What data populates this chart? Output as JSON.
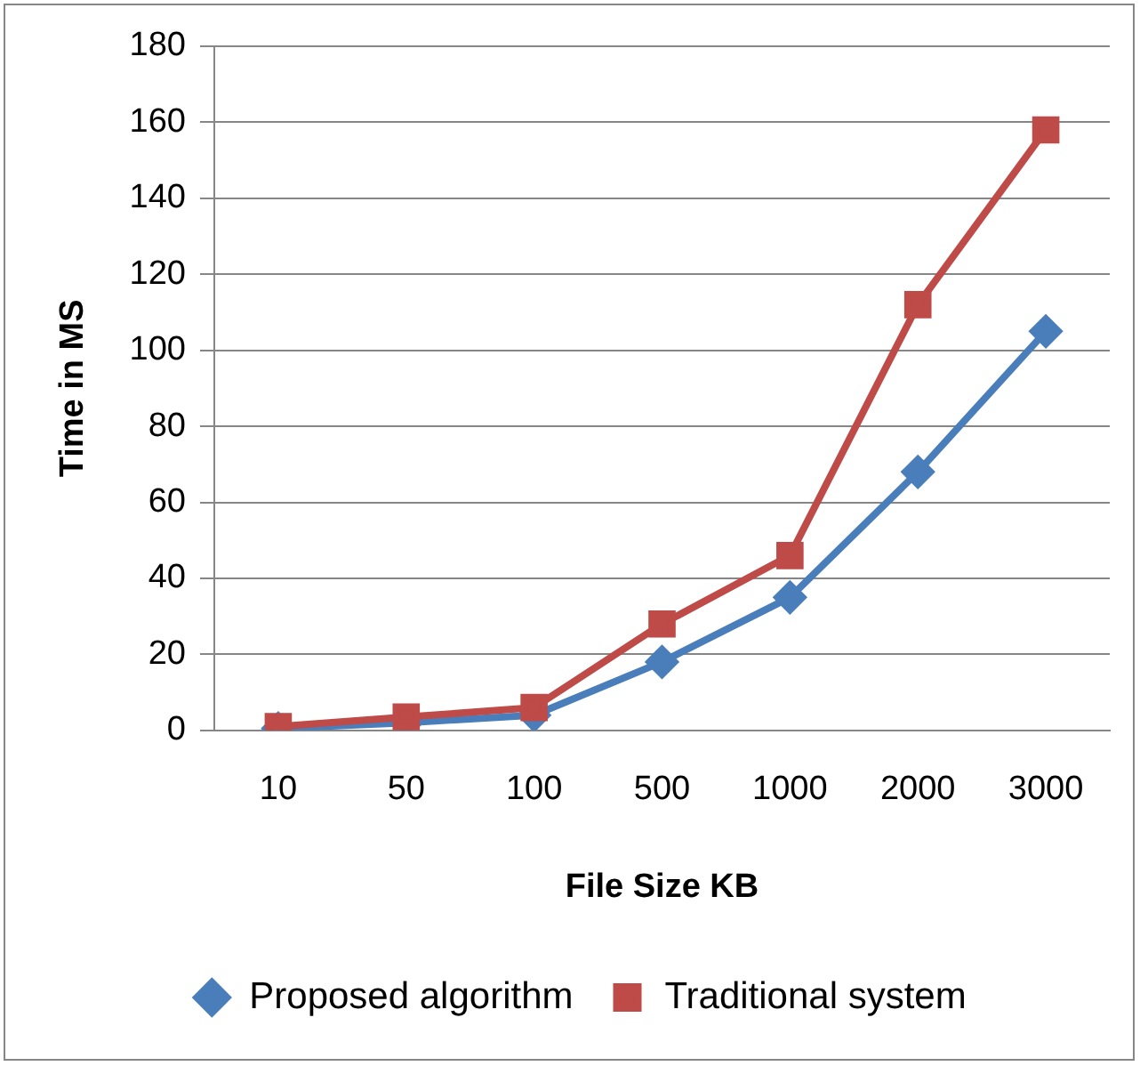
{
  "chart_data": {
    "type": "line",
    "xlabel": "File Size KB",
    "ylabel": "Time in MS",
    "categories": [
      "10",
      "50",
      "100",
      "500",
      "1000",
      "2000",
      "3000"
    ],
    "series": [
      {
        "name": "Proposed algorithm",
        "color": "#4a7ebb",
        "marker": "diamond",
        "values": [
          0.5,
          2,
          4,
          18,
          35,
          68,
          105
        ]
      },
      {
        "name": "Traditional system",
        "color": "#be4b48",
        "marker": "square",
        "values": [
          1,
          3.5,
          6,
          28,
          46,
          112,
          158
        ]
      }
    ],
    "ylim": [
      0,
      180
    ],
    "yticks": [
      0,
      20,
      40,
      60,
      80,
      100,
      120,
      140,
      160,
      180
    ],
    "grid": "y",
    "legend": "bottom"
  }
}
